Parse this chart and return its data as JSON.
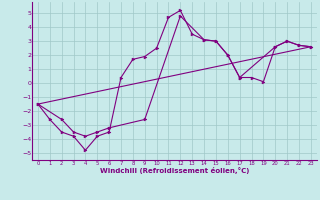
{
  "xlabel": "Windchill (Refroidissement éolien,°C)",
  "bg_color": "#c8eaea",
  "grid_color": "#a0c8c8",
  "line_color": "#800080",
  "xlim": [
    -0.5,
    23.5
  ],
  "ylim": [
    -5.5,
    5.8
  ],
  "yticks": [
    -5,
    -4,
    -3,
    -2,
    -1,
    0,
    1,
    2,
    3,
    4,
    5
  ],
  "xticks": [
    0,
    1,
    2,
    3,
    4,
    5,
    6,
    7,
    8,
    9,
    10,
    11,
    12,
    13,
    14,
    15,
    16,
    17,
    18,
    19,
    20,
    21,
    22,
    23
  ],
  "series1_x": [
    0,
    1,
    2,
    3,
    4,
    5,
    6,
    7,
    8,
    9,
    10,
    11,
    12,
    13,
    14,
    15,
    16,
    17,
    18,
    19,
    20,
    21,
    22,
    23
  ],
  "series1_y": [
    -1.5,
    -2.6,
    -3.5,
    -3.8,
    -4.8,
    -3.8,
    -3.5,
    0.4,
    1.7,
    1.9,
    2.5,
    4.7,
    5.2,
    3.5,
    3.1,
    3.0,
    2.0,
    0.4,
    0.4,
    0.1,
    2.6,
    3.0,
    2.7,
    2.6
  ],
  "series2_x": [
    0,
    2,
    3,
    4,
    5,
    6,
    9,
    12,
    14,
    15,
    16,
    17,
    20,
    21,
    22,
    23
  ],
  "series2_y": [
    -1.5,
    -2.6,
    -3.5,
    -3.8,
    -3.5,
    -3.2,
    -2.6,
    4.8,
    3.1,
    3.0,
    2.0,
    0.4,
    2.6,
    3.0,
    2.7,
    2.6
  ],
  "series3_x": [
    0,
    23
  ],
  "series3_y": [
    -1.5,
    2.6
  ]
}
